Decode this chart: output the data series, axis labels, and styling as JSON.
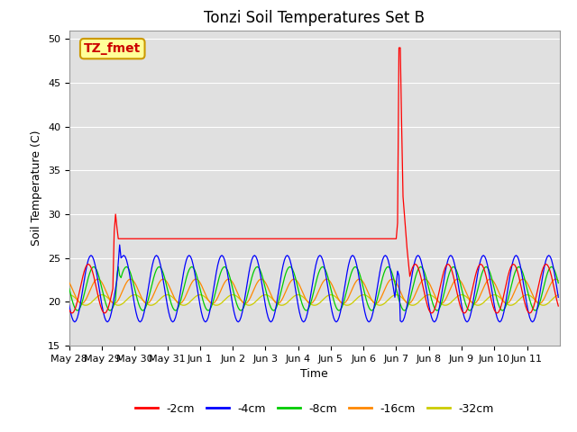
{
  "title": "Tonzi Soil Temperatures Set B",
  "xlabel": "Time",
  "ylabel": "Soil Temperature (C)",
  "ylim": [
    15,
    51
  ],
  "yticks": [
    15,
    20,
    25,
    30,
    35,
    40,
    45,
    50
  ],
  "legend_labels": [
    "-2cm",
    "-4cm",
    "-8cm",
    "-16cm",
    "-32cm"
  ],
  "legend_colors": [
    "#ff0000",
    "#0000ff",
    "#00cc00",
    "#ff8800",
    "#cccc00"
  ],
  "annotation_text": "TZ_fmet",
  "annotation_bg": "#ffff99",
  "annotation_border": "#cc9900",
  "background_color": "#e0e0e0",
  "grid_color": "#ffffff",
  "title_fontsize": 12,
  "axis_fontsize": 9,
  "tick_fontsize": 8
}
